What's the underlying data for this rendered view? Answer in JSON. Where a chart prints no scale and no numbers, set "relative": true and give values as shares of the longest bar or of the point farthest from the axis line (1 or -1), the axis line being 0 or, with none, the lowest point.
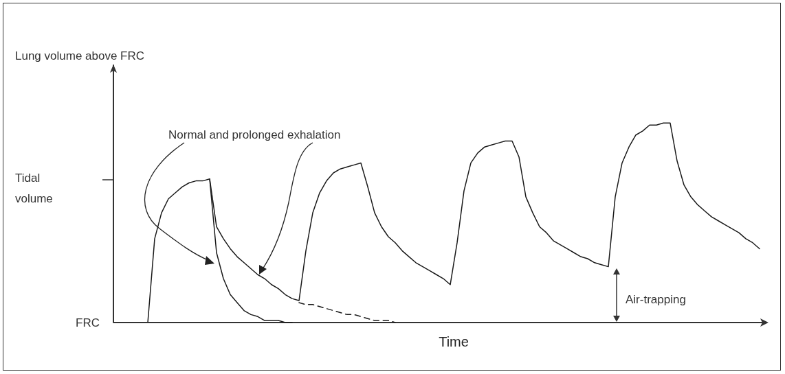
{
  "chart_data": {
    "type": "line",
    "relative": true,
    "xlabel": "Time",
    "categories": [
      null,
      null,
      null,
      null,
      null,
      null,
      null,
      null,
      null,
      null,
      null,
      null,
      null,
      null,
      null,
      null,
      null,
      null,
      null,
      null,
      null,
      null,
      null,
      null,
      null,
      null,
      null,
      null,
      null,
      null,
      null,
      null,
      null,
      null,
      null,
      null,
      null,
      null,
      null,
      null,
      null,
      null,
      null,
      null,
      null,
      null,
      null,
      null,
      null,
      null,
      null,
      null,
      null,
      null,
      null,
      null,
      null,
      null,
      null,
      null,
      null,
      null,
      null,
      null,
      null,
      null,
      null,
      null,
      null,
      null,
      null,
      null,
      null,
      null,
      null,
      null,
      null,
      null,
      null,
      null,
      null,
      null,
      null,
      null,
      null,
      null,
      null,
      null,
      null,
      null
    ],
    "marker": "none",
    "series": [
      {
        "color": "#1a1a1a",
        "line_style": "solid",
        "values": [
          0,
          0.42,
          0.55,
          0.62,
          0.65,
          0.68,
          0.7,
          0.71,
          0.71,
          0.72,
          0.48,
          0.42,
          0.37,
          0.33,
          0.3,
          0.27,
          0.24,
          0.22,
          0.19,
          0.17,
          0.14,
          0.12,
          0.11,
          0.36,
          0.55,
          0.65,
          0.71,
          0.75,
          0.77,
          0.78,
          0.79,
          0.8,
          0.68,
          0.55,
          0.48,
          0.43,
          0.4,
          0.36,
          0.33,
          0.3,
          0.28,
          0.26,
          0.24,
          0.22,
          0.19,
          0.4,
          0.66,
          0.8,
          0.85,
          0.88,
          0.89,
          0.9,
          0.91,
          0.91,
          0.83,
          0.63,
          0.55,
          0.48,
          0.45,
          0.41,
          0.39,
          0.37,
          0.35,
          0.33,
          0.32,
          0.3,
          0.29,
          0.28,
          0.63,
          0.8,
          0.88,
          0.94,
          0.96,
          0.99,
          0.99,
          1,
          1,
          0.81,
          0.69,
          0.63,
          0.59,
          0.56,
          0.53,
          0.51,
          0.49,
          0.47,
          0.45,
          0.42,
          0.4,
          0.37
        ]
      },
      {
        "color": "#1a1a1a",
        "line_style": "solid",
        "values": [
          null,
          null,
          null,
          null,
          null,
          null,
          null,
          null,
          null,
          0.72,
          0.35,
          0.22,
          0.14,
          0.1,
          0.06,
          0.04,
          0.03,
          0.01,
          0.01,
          0.01,
          0,
          0,
          null,
          null,
          null,
          null,
          null,
          null,
          null,
          null,
          null,
          null,
          null,
          null,
          null,
          null,
          null,
          null,
          null,
          null,
          null,
          null,
          null,
          null,
          null,
          null,
          null,
          null,
          null,
          null,
          null,
          null,
          null,
          null,
          null,
          null,
          null,
          null,
          null,
          null,
          null,
          null,
          null,
          null,
          null,
          null,
          null,
          null,
          null,
          null,
          null,
          null,
          null,
          null,
          null,
          null,
          null,
          null,
          null,
          null,
          null,
          null,
          null,
          null,
          null,
          null,
          null,
          null,
          null,
          null
        ]
      },
      {
        "color": "#1a1a1a",
        "line_style": "dashed",
        "values": [
          null,
          null,
          null,
          null,
          null,
          null,
          null,
          null,
          null,
          null,
          null,
          null,
          null,
          null,
          null,
          null,
          null,
          null,
          null,
          null,
          null,
          null,
          0.1,
          0.09,
          0.09,
          0.08,
          0.07,
          0.06,
          0.05,
          0.04,
          0.04,
          0.03,
          0.02,
          0.01,
          0.01,
          0.01,
          0,
          null,
          null,
          null,
          null,
          null,
          null,
          null,
          null,
          null,
          null,
          null,
          null,
          null,
          null,
          null,
          null,
          null,
          null,
          null,
          null,
          null,
          null,
          null,
          null,
          null,
          null,
          null,
          null,
          null,
          null,
          null,
          null,
          null,
          null,
          null,
          null,
          null,
          null,
          null,
          null,
          null,
          null,
          null,
          null,
          null,
          null,
          null,
          null,
          null,
          null,
          null,
          null,
          null
        ]
      }
    ],
    "annotations": [
      "Lung volume above FRC",
      "Normal and prolonged exhalation",
      "Air-trapping",
      "FRC",
      "Tidal volume"
    ]
  }
}
